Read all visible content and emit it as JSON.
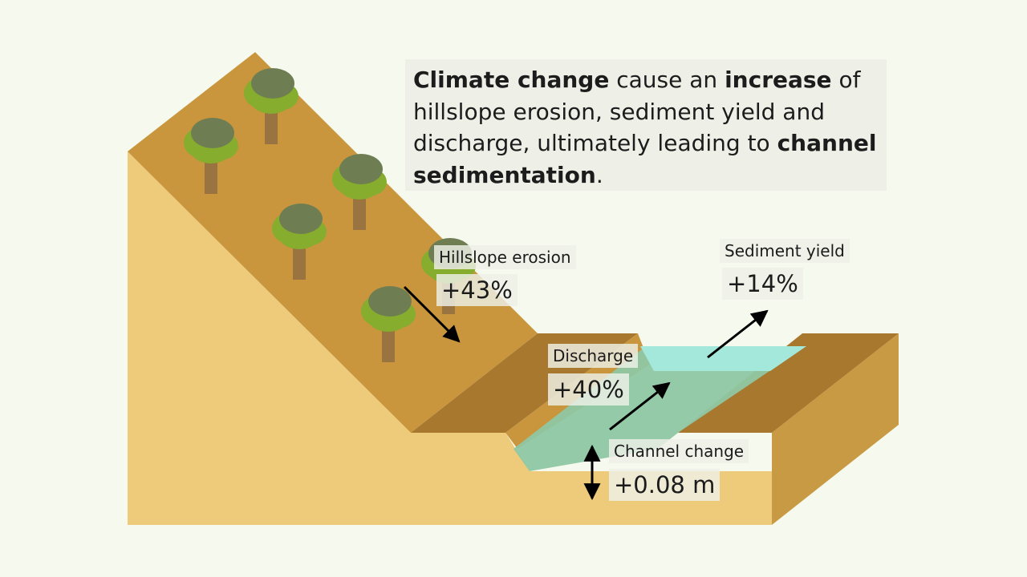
{
  "headline": {
    "parts": [
      {
        "text": "Climate change",
        "bold": true
      },
      {
        "text": " cause an ",
        "bold": false
      },
      {
        "text": "increase",
        "bold": true
      },
      {
        "text": " of hillslope erosion, sediment yield and discharge, ultimately leading to ",
        "bold": false
      },
      {
        "text": "channel sedimentation",
        "bold": true
      },
      {
        "text": ".",
        "bold": false
      }
    ]
  },
  "labels": {
    "hillslope": {
      "name": "Hillslope erosion",
      "value": "+43%"
    },
    "sediment": {
      "name": "Sediment yield",
      "value": "+14%"
    },
    "discharge": {
      "name": "Discharge",
      "value": "+40%"
    },
    "channel": {
      "name": "Channel change",
      "value": "+0.08 m"
    }
  },
  "colors": {
    "background": "#f6faee",
    "ground_front": "#eecb7a",
    "slope_top": "#c9963e",
    "bank_dark": "#a9782f",
    "bank_side": "#c99a44",
    "water": "#8fc7a3",
    "water_surface": "#a4e8dc",
    "tree_canopy_light": "#86ad2d",
    "tree_canopy_dark": "#6f7e52",
    "tree_trunk": "#9a7440"
  }
}
